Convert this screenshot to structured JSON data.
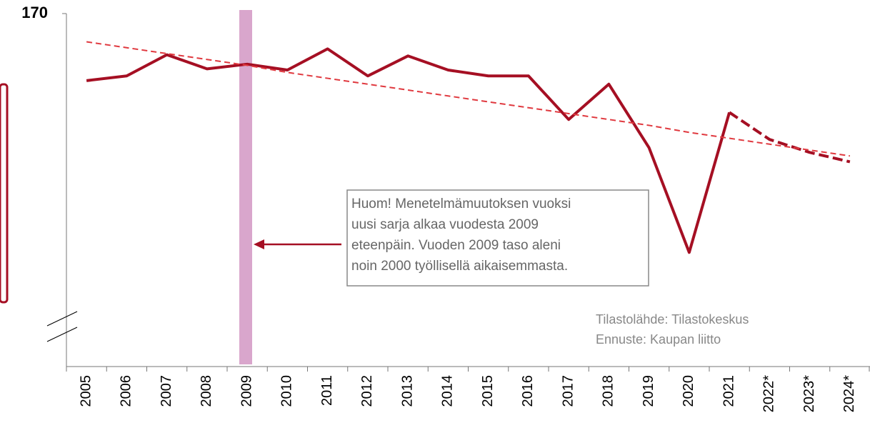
{
  "chart_data": {
    "type": "line",
    "categories": [
      "2005",
      "2006",
      "2007",
      "2008",
      "2009",
      "2010",
      "2011",
      "2012",
      "2013",
      "2014",
      "2015",
      "2016",
      "2017",
      "2018",
      "2019",
      "2020",
      "2021",
      "2022*",
      "2023*",
      "2024*"
    ],
    "series": [
      {
        "color": "#a50f23",
        "dash": false,
        "values": [
          164.3,
          164.7,
          166.5,
          165.3,
          165.7,
          165.2,
          167.0,
          164.7,
          166.4,
          165.2,
          164.7,
          164.7,
          161.0,
          164.0,
          158.6,
          149.7,
          161.6,
          null,
          null,
          null
        ]
      },
      {
        "color": "#a50f23",
        "dash": true,
        "values": [
          null,
          null,
          null,
          null,
          null,
          null,
          null,
          null,
          null,
          null,
          null,
          null,
          null,
          null,
          null,
          null,
          161.6,
          159.3,
          158.2,
          157.4
        ]
      },
      {
        "color": "#e0393f",
        "dash": true,
        "thin": true,
        "values": [
          167.6,
          167.1,
          166.6,
          166.1,
          165.6,
          165.0,
          164.5,
          164.0,
          163.5,
          163.0,
          162.5,
          162.0,
          161.5,
          161.0,
          160.5,
          159.9,
          159.4,
          158.9,
          158.4,
          157.9
        ]
      }
    ],
    "ylim": [
      140,
      170
    ],
    "yticks": [
      170
    ],
    "annotation": [
      "Huom! Menetelmämuutoksen vuoksi",
      "uusi sarja alkaa vuodesta 2009",
      "eteenpäin. Vuoden 2009 taso aleni",
      "noin 2000 työllisellä aikaisemmasta."
    ],
    "source": [
      "Tilastolähde: Tilastokeskus",
      "Ennuste: Kaupan liitto"
    ]
  }
}
